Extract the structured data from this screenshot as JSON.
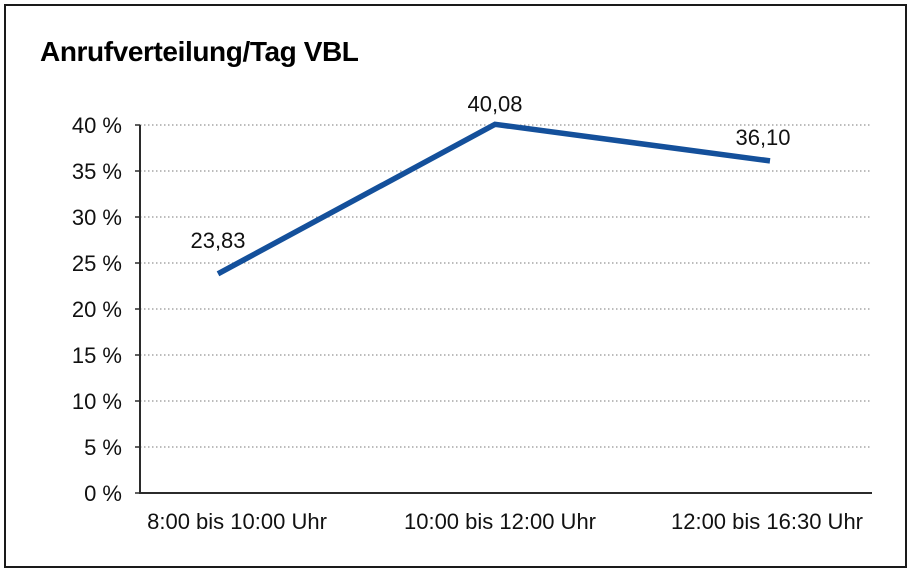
{
  "title": "Anrufverteilung/Tag VBL",
  "chart_data": {
    "type": "line",
    "title": "Anrufverteilung/Tag VBL",
    "categories": [
      "8:00 bis 10:00 Uhr",
      "10:00 bis 12:00 Uhr",
      "12:00 bis 16:30 Uhr"
    ],
    "values": [
      23.83,
      40.08,
      36.1
    ],
    "data_labels": [
      "23,83",
      "40,08",
      "36,10"
    ],
    "series_name": "Anrufverteilung",
    "xlabel": "",
    "ylabel": "",
    "ylim": [
      0,
      40
    ],
    "y_tick_step": 5,
    "y_tick_labels": [
      "0 %",
      "5 %",
      "10 %",
      "15 %",
      "20 %",
      "25 %",
      "30 %",
      "35 %",
      "40 %"
    ],
    "grid": "horizontal-dotted",
    "legend_position": "none",
    "line_color": "#14509B"
  },
  "colors": {
    "line": "#14509B",
    "grid": "#7a7a7a",
    "axis": "#2b2b2b",
    "text": "#111111",
    "background": "#ffffff",
    "frame_border": "#1a1a1a"
  }
}
